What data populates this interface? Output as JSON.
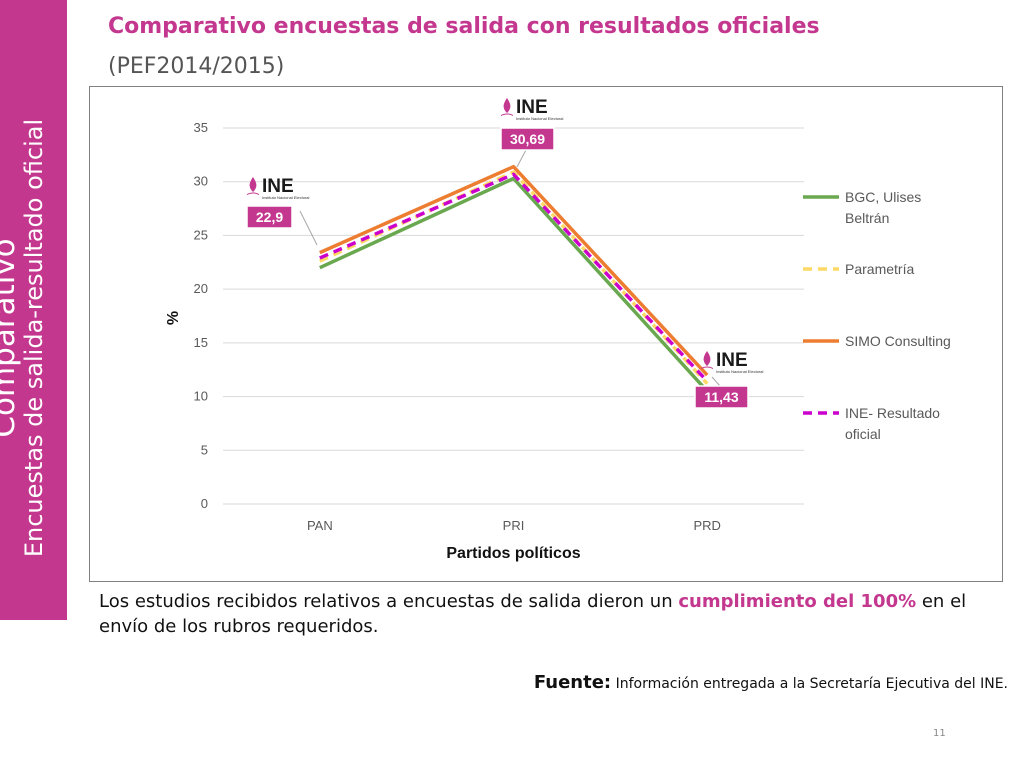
{
  "slide": {
    "title": "Comparativo encuestas de salida con resultados oficiales",
    "subtitle": "(PEF2014/2015)",
    "sidebar_line1": "Comparativo",
    "sidebar_line2": "Encuestas de salida-resultado oficial",
    "body_part1": "Los estudios recibidos  relativos a encuestas de salida dieron  un ",
    "body_highlight": "cumplimiento del 100%",
    "body_part2": " en el envío de los rubros requeridos.",
    "source_label": "Fuente:",
    "source_text": " Información entregada a la Secretaría Ejecutiva del INE.",
    "page_number": "11",
    "accent_color": "#c4378f"
  },
  "chart_data": {
    "type": "line",
    "categories": [
      "PAN",
      "PRI",
      "PRD"
    ],
    "xlabel": "Partidos políticos",
    "ylabel": "%",
    "ylim": [
      0,
      35
    ],
    "yticks": [
      "0",
      "5",
      "10",
      "15",
      "20",
      "25",
      "30",
      "35"
    ],
    "grid": true,
    "legend_position": "right",
    "series": [
      {
        "name": "BGC, Ulises Beltrán",
        "values": [
          22,
          30.3,
          10.5
        ],
        "color": "#6aa84f",
        "dash": false
      },
      {
        "name": "Parametría",
        "values": [
          22.6,
          30.9,
          11.2
        ],
        "color": "#ffd966",
        "dash": true
      },
      {
        "name": "SIMO Consulting",
        "values": [
          23.4,
          31.4,
          12.0
        ],
        "color": "#ed7d31",
        "dash": false
      },
      {
        "name": "INE- Resultado oficial",
        "values": [
          22.9,
          30.69,
          11.43
        ],
        "color": "#cc00cc",
        "dash": true
      }
    ],
    "annotations": [
      {
        "category": "PAN",
        "label": "22,9",
        "logo": "INE",
        "logo_sub": "Instituto Nacional Electoral"
      },
      {
        "category": "PRI",
        "label": "30,69",
        "logo": "INE",
        "logo_sub": "Instituto Nacional Electoral"
      },
      {
        "category": "PRD",
        "label": "11,43",
        "logo": "INE",
        "logo_sub": "Instituto Nacional Electoral"
      }
    ]
  }
}
